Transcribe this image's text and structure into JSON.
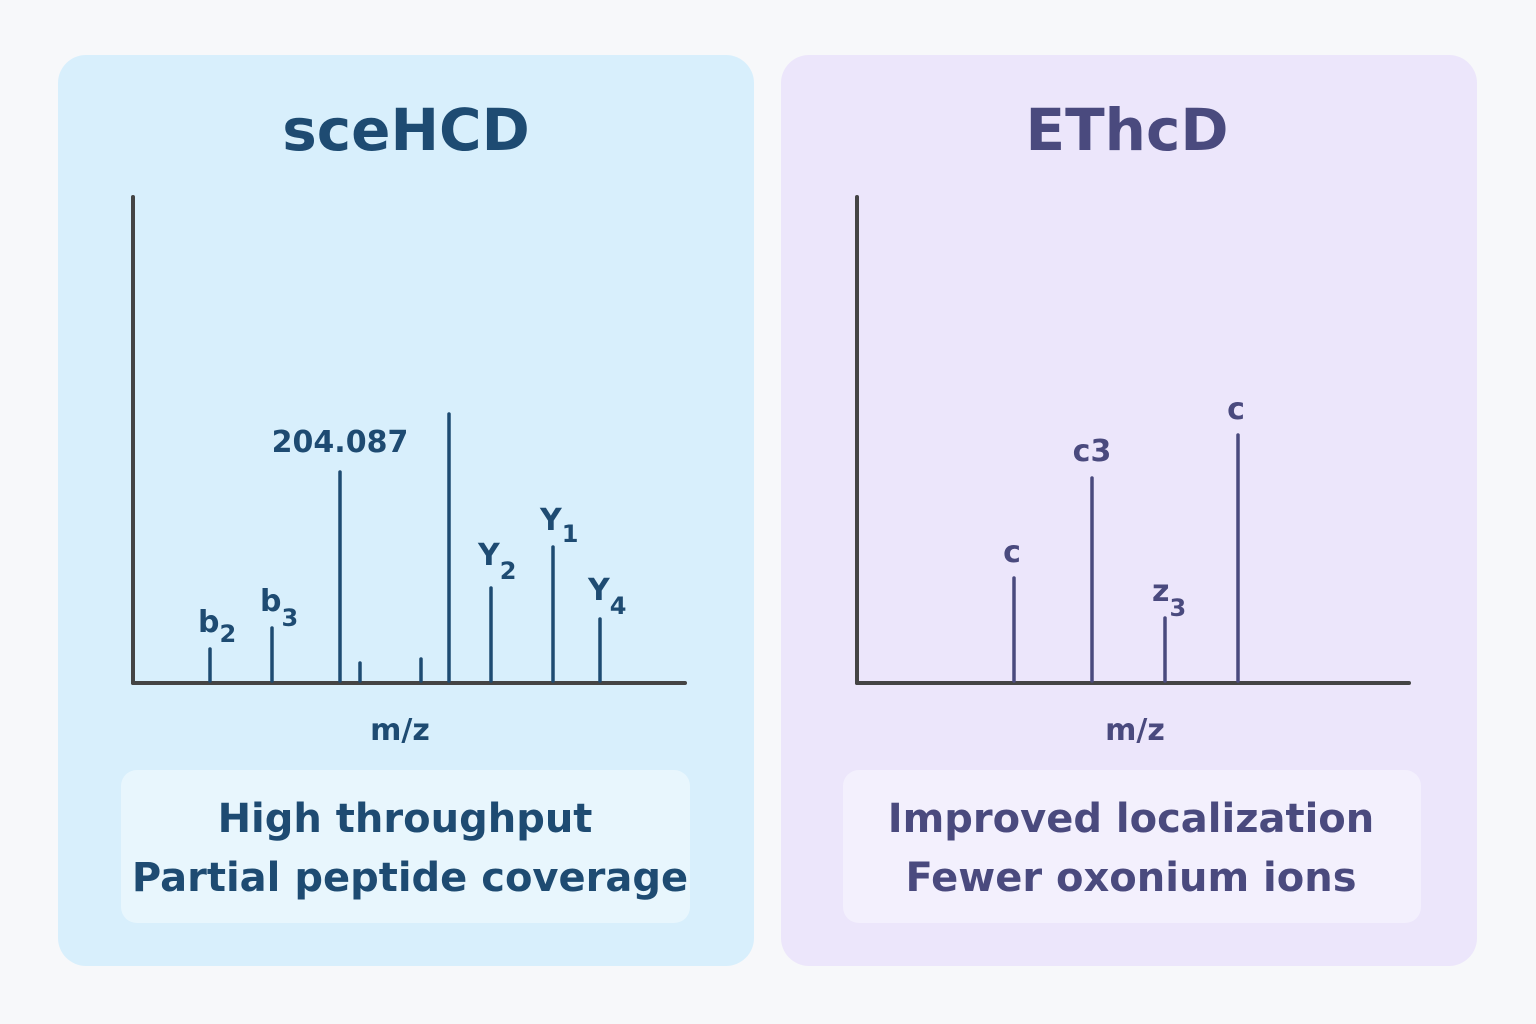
{
  "colors": {
    "background": "#f7f8fa",
    "left_panel": "#d8effc",
    "left_box": "#e8f6fd",
    "left_text": "#1e4b72",
    "right_panel": "#ece6fb",
    "right_box": "#f3f0fd",
    "right_text": "#4a4a7e",
    "axis": "#444444"
  },
  "left": {
    "title": "sceHCD",
    "x_axis_label": "m/z",
    "peak_labels": {
      "b2": {
        "base": "b",
        "sub": "2"
      },
      "b3": {
        "base": "b",
        "sub": "3"
      },
      "oxonium": "204.087",
      "y2": {
        "base": "Y",
        "sub": "2"
      },
      "y1": {
        "base": "Y",
        "sub": "1"
      },
      "y4": {
        "base": "Y",
        "sub": "4"
      }
    },
    "summary": [
      "High throughput",
      "Partial peptide coverage"
    ]
  },
  "right": {
    "title": "EThcD",
    "x_axis_label": "m/z",
    "peak_labels": {
      "c_a": "c",
      "c3": "c3",
      "z3": {
        "base": "z",
        "sub": "3"
      },
      "c_b": "c"
    },
    "summary": [
      "Improved localization",
      "Fewer oxonium ions"
    ]
  }
}
